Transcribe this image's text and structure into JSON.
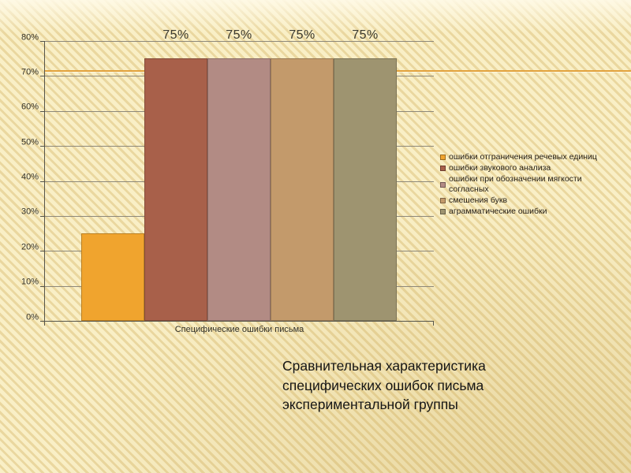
{
  "slide": {
    "background_color": "#F9EFC6",
    "accent_line_color": "#E2A23C",
    "caption": {
      "lines": [
        "Сравнительная характеристика",
        "специфических ошибок письма",
        "экспериментальной группы"
      ]
    }
  },
  "chart_data": {
    "type": "bar",
    "title": "",
    "categories": [
      "Специфические ошибки письма"
    ],
    "series": [
      {
        "name": "ошибки отграничения речевых единиц",
        "values": [
          25
        ],
        "color": "#F0A42E",
        "data_label": ""
      },
      {
        "name": "ошибки звукового анализа",
        "values": [
          75
        ],
        "color": "#A8604A",
        "data_label": "75%"
      },
      {
        "name": "ошибки при обозначении мягкости согласных",
        "values": [
          75
        ],
        "color": "#B28B84",
        "data_label": "75%"
      },
      {
        "name": "смешения букв",
        "values": [
          75
        ],
        "color": "#C39A6B",
        "data_label": "75%"
      },
      {
        "name": "аграмматические ошибки",
        "values": [
          75
        ],
        "color": "#9E9470",
        "data_label": "75%"
      }
    ],
    "xlabel": "Специфические ошибки письма",
    "ylabel": "",
    "ylim": [
      0,
      80
    ],
    "y_ticks": [
      "0%",
      "10%",
      "20%",
      "30%",
      "40%",
      "50%",
      "60%",
      "70%",
      "80%"
    ],
    "grid": true,
    "legend_position": "right"
  }
}
